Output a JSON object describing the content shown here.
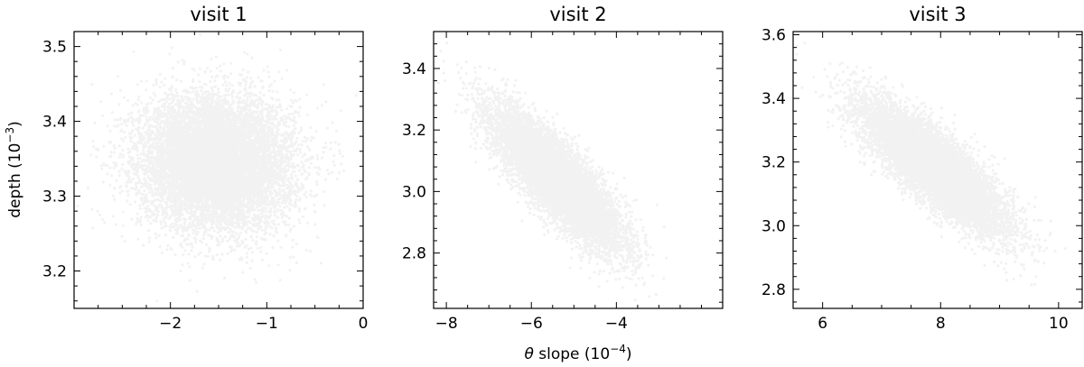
{
  "figure": {
    "ylabel_main": "depth (10",
    "ylabel_exp": "−3",
    "ylabel_close": ")",
    "xlabel_theta": "θ",
    "xlabel_main": " slope (10",
    "xlabel_exp": "−4",
    "xlabel_close": ")"
  },
  "chart_data": [
    {
      "type": "scatter",
      "title": "visit 1",
      "xlim": [
        -3.0,
        0.0
      ],
      "ylim": [
        3.15,
        3.52
      ],
      "xticks": [
        -2,
        -1,
        0
      ],
      "xtick_labels": [
        "−2",
        "−1",
        "0"
      ],
      "yticks": [
        3.2,
        3.3,
        3.4,
        3.5
      ],
      "ytick_labels": [
        "3.2",
        "3.3",
        "3.4",
        "3.5"
      ],
      "distribution": {
        "x_mean": -1.52,
        "x_sd": 0.4,
        "y_mean": 3.345,
        "y_sd": 0.045,
        "correlation": -0.05,
        "n_points": 9000
      },
      "point_color": "#000000",
      "point_alpha": 0.05
    },
    {
      "type": "scatter",
      "title": "visit 2",
      "xlim": [
        -8.3,
        -1.5
      ],
      "ylim": [
        2.62,
        3.52
      ],
      "xticks": [
        -8,
        -6,
        -4
      ],
      "xtick_labels": [
        "−8",
        "−6",
        "−4"
      ],
      "yticks": [
        2.8,
        3.0,
        3.2,
        3.4
      ],
      "ytick_labels": [
        "2.8",
        "3.0",
        "3.2",
        "3.4"
      ],
      "distribution": {
        "x_mean": -5.4,
        "x_sd": 0.75,
        "y_mean": 3.04,
        "y_sd": 0.11,
        "correlation": -0.82,
        "n_points": 9000
      },
      "point_color": "#000000",
      "point_alpha": 0.05
    },
    {
      "type": "scatter",
      "title": "visit 3",
      "xlim": [
        5.5,
        10.4
      ],
      "ylim": [
        2.74,
        3.61
      ],
      "xticks": [
        6,
        8,
        10
      ],
      "xtick_labels": [
        "6",
        "8",
        "10"
      ],
      "yticks": [
        2.8,
        3.0,
        3.2,
        3.4,
        3.6
      ],
      "ytick_labels": [
        "2.8",
        "3.0",
        "3.2",
        "3.4",
        "3.6"
      ],
      "distribution": {
        "x_mean": 7.9,
        "x_sd": 0.6,
        "y_mean": 3.18,
        "y_sd": 0.1,
        "correlation": -0.82,
        "n_points": 9000
      },
      "point_color": "#000000",
      "point_alpha": 0.05
    }
  ]
}
